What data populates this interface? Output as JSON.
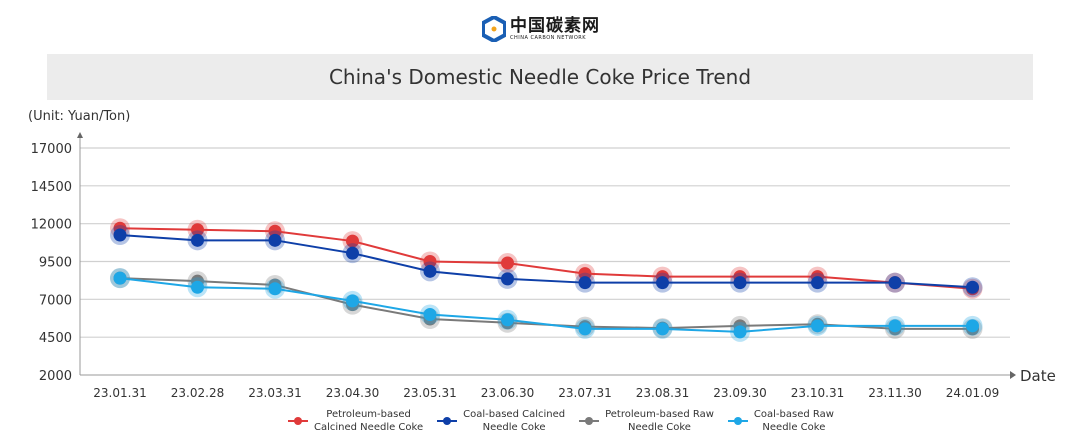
{
  "logo": {
    "cn": "中国碳素网",
    "en": "CHINA CARBON NETWORK"
  },
  "chart_data": {
    "type": "line",
    "title": "China's Domestic Needle Coke Price Trend",
    "ylabel": "(Unit: Yuan/Ton)",
    "xlabel": "Date",
    "ylim": [
      2000,
      17000
    ],
    "yticks": [
      "2000",
      "4500",
      "7000",
      "9500",
      "12000",
      "14500",
      "17000"
    ],
    "categories": [
      "23.01.31",
      "23.02.28",
      "23.03.31",
      "23.04.30",
      "23.05.31",
      "23.06.30",
      "23.07.31",
      "23.08.31",
      "23.09.30",
      "23.10.31",
      "23.11.30",
      "24.01.09"
    ],
    "legend_position": "bottom",
    "series": [
      {
        "name": "Petroleum-based Calcined Needle Coke",
        "name_l1": "Petroleum-based",
        "name_l2": "Calcined Needle Coke",
        "color": "#e03a3a",
        "values": [
          11700,
          11600,
          11500,
          10850,
          9500,
          9400,
          8700,
          8500,
          8500,
          8500,
          8100,
          7700
        ]
      },
      {
        "name": "Coal-based Calcined Needle Coke",
        "name_l1": "Coal-based Calcined",
        "name_l2": "Needle Coke",
        "color": "#0e3fa8",
        "values": [
          11250,
          10900,
          10900,
          10050,
          8850,
          8350,
          8100,
          8100,
          8100,
          8100,
          8100,
          7800
        ]
      },
      {
        "name": "Petroleum-based Raw Needle Coke",
        "name_l1": "Petroleum-based Raw",
        "name_l2": "Needle Coke",
        "color": "#7a7a7a",
        "values": [
          8400,
          8200,
          7950,
          6650,
          5700,
          5450,
          5200,
          5100,
          5250,
          5350,
          5050,
          5050
        ]
      },
      {
        "name": "Coal-based Raw Needle Coke",
        "name_l1": "Coal-based Raw",
        "name_l2": "Needle Coke",
        "color": "#1ea7e6",
        "values": [
          8400,
          7800,
          7700,
          6900,
          6000,
          5650,
          5050,
          5050,
          4850,
          5250,
          5250,
          5250
        ]
      }
    ]
  }
}
